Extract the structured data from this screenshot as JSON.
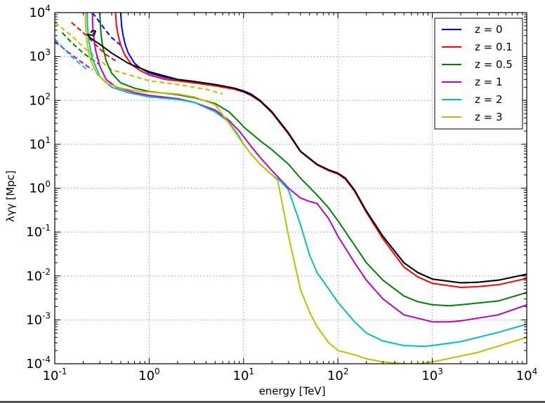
{
  "chart_data": {
    "type": "line",
    "title": "",
    "xlabel": "energy [TeV]",
    "ylabel": "λγγ [Mpc]",
    "xscale": "log",
    "yscale": "log",
    "xlim": [
      0.1,
      10000
    ],
    "ylim": [
      0.0001,
      10000
    ],
    "x_ticks": [
      {
        "value": 0.1,
        "base": "10",
        "exp": "-1"
      },
      {
        "value": 1,
        "base": "10",
        "exp": "0"
      },
      {
        "value": 10,
        "base": "10",
        "exp": "1"
      },
      {
        "value": 100,
        "base": "10",
        "exp": "2"
      },
      {
        "value": 1000,
        "base": "10",
        "exp": "3"
      },
      {
        "value": 10000,
        "base": "10",
        "exp": "4"
      }
    ],
    "y_ticks": [
      {
        "value": 0.0001,
        "base": "10",
        "exp": "-4"
      },
      {
        "value": 0.001,
        "base": "10",
        "exp": "-3"
      },
      {
        "value": 0.01,
        "base": "10",
        "exp": "-2"
      },
      {
        "value": 0.1,
        "base": "10",
        "exp": "-1"
      },
      {
        "value": 1,
        "base": "10",
        "exp": "0"
      },
      {
        "value": 10,
        "base": "10",
        "exp": "1"
      },
      {
        "value": 100,
        "base": "10",
        "exp": "2"
      },
      {
        "value": 1000,
        "base": "10",
        "exp": "3"
      },
      {
        "value": 10000,
        "base": "10",
        "exp": "4"
      }
    ],
    "grid": true,
    "legend_position": "top-right",
    "series": [
      {
        "name": "z = 0",
        "color": "#0000ff",
        "x": [
          0.5,
          0.51,
          0.53,
          0.56,
          0.6,
          0.7,
          0.8,
          1.0,
          1.5,
          2,
          3,
          5,
          8,
          10,
          12,
          15,
          20,
          30,
          40,
          60,
          80,
          100,
          120,
          150,
          200,
          300,
          500,
          700,
          1000,
          2000,
          3000,
          5000,
          10000
        ],
        "y": [
          10000,
          5000,
          3000,
          1800,
          1200,
          700,
          550,
          420,
          330,
          300,
          270,
          230,
          190,
          165,
          140,
          100,
          55,
          18,
          7,
          3.5,
          2.6,
          2.2,
          1.7,
          0.9,
          0.3,
          0.08,
          0.02,
          0.012,
          0.0085,
          0.007,
          0.0072,
          0.008,
          0.011
        ],
        "dashed_x": [
          0.25,
          0.3,
          0.35,
          0.4,
          0.5
        ],
        "dashed_y": [
          10000,
          6000,
          3800,
          2700,
          1800
        ]
      },
      {
        "name": "z = 0.1",
        "color": "#ff0000",
        "x": [
          0.44,
          0.45,
          0.47,
          0.5,
          0.55,
          0.65,
          0.8,
          1.0,
          1.5,
          2,
          3,
          5,
          8,
          10,
          12,
          15,
          20,
          30,
          40,
          60,
          80,
          100,
          120,
          150,
          200,
          300,
          500,
          700,
          1000,
          2000,
          3000,
          5000,
          10000
        ],
        "y": [
          10000,
          5000,
          3000,
          1800,
          1100,
          650,
          480,
          380,
          300,
          280,
          250,
          215,
          180,
          155,
          130,
          95,
          52,
          17,
          6.8,
          3.4,
          2.5,
          2.1,
          1.6,
          0.85,
          0.28,
          0.07,
          0.016,
          0.0095,
          0.0068,
          0.0055,
          0.0057,
          0.0063,
          0.0088
        ],
        "dashed_x": [
          0.15,
          0.2,
          0.25,
          0.3,
          0.35,
          0.44
        ],
        "dashed_y": [
          6000,
          3500,
          2200,
          1500,
          1100,
          800
        ]
      },
      {
        "name": "z = 0.5",
        "color": "#007f00",
        "x": [
          0.3,
          0.305,
          0.31,
          0.32,
          0.35,
          0.4,
          0.5,
          0.7,
          1.0,
          2,
          3,
          5,
          7,
          9,
          10,
          12,
          15,
          20,
          30,
          40,
          60,
          80,
          100,
          150,
          200,
          300,
          500,
          700,
          1000,
          1500,
          2000,
          5000,
          10000
        ],
        "y": [
          10000,
          5000,
          3000,
          1800,
          800,
          420,
          250,
          190,
          160,
          135,
          115,
          85,
          55,
          32,
          25,
          18,
          12,
          7.5,
          3.5,
          1.7,
          0.7,
          0.35,
          0.18,
          0.05,
          0.02,
          0.008,
          0.0035,
          0.0026,
          0.0022,
          0.0021,
          0.0022,
          0.0027,
          0.0042
        ],
        "dashed_x": [
          0.12,
          0.15,
          0.2,
          0.25,
          0.3
        ],
        "dashed_y": [
          3500,
          2100,
          1200,
          850,
          650
        ]
      },
      {
        "name": "z = 1",
        "color": "#bf00bf",
        "x": [
          0.25,
          0.252,
          0.26,
          0.27,
          0.3,
          0.35,
          0.45,
          0.7,
          1.0,
          2,
          3,
          5,
          7,
          9,
          10,
          12,
          15,
          20,
          30,
          40,
          50,
          60,
          80,
          100,
          150,
          200,
          300,
          500,
          1000,
          1500,
          2000,
          5000,
          10000
        ],
        "y": [
          10000,
          5000,
          2500,
          1400,
          600,
          300,
          200,
          150,
          130,
          110,
          90,
          60,
          35,
          20,
          15,
          9,
          5,
          2.5,
          1.0,
          0.6,
          0.5,
          0.45,
          0.2,
          0.08,
          0.02,
          0.008,
          0.003,
          0.0013,
          0.0009,
          0.0009,
          0.00095,
          0.0013,
          0.0022
        ],
        "dashed_x": [
          0.1,
          0.15,
          0.2,
          0.25
        ],
        "dashed_y": [
          2200,
          1100,
          700,
          500
        ]
      },
      {
        "name": "z = 2",
        "color": "#00bfbf",
        "x": [
          0.22,
          0.222,
          0.23,
          0.25,
          0.3,
          0.4,
          0.6,
          1.0,
          2,
          3,
          5,
          7,
          9,
          10,
          12,
          15,
          20,
          25,
          30,
          40,
          50,
          60,
          80,
          100,
          150,
          200,
          300,
          500,
          800,
          1000,
          2000,
          5000,
          10000
        ],
        "y": [
          10000,
          5000,
          2200,
          900,
          350,
          200,
          150,
          120,
          105,
          90,
          55,
          32,
          15,
          10,
          6,
          3.5,
          2.0,
          1.4,
          0.9,
          0.15,
          0.03,
          0.012,
          0.005,
          0.0025,
          0.0009,
          0.0005,
          0.00033,
          0.00026,
          0.00025,
          0.00026,
          0.00032,
          0.00052,
          0.0008
        ],
        "dashed_x": [
          0.1,
          0.15,
          0.22
        ],
        "dashed_y": [
          2500,
          1000,
          500
        ]
      },
      {
        "name": "z = 3",
        "color": "#bfbf00",
        "x": [
          0.21,
          0.212,
          0.22,
          0.24,
          0.28,
          0.35,
          0.5,
          0.8,
          1.0,
          2,
          3,
          5,
          7,
          10,
          12,
          15,
          20,
          23,
          25,
          30,
          40,
          50,
          60,
          80,
          100,
          150,
          200,
          300,
          500,
          700,
          1000,
          3000,
          10000
        ],
        "y": [
          10000,
          5000,
          2000,
          800,
          400,
          250,
          190,
          160,
          155,
          140,
          120,
          80,
          30,
          10,
          6,
          3.5,
          2.0,
          1.5,
          0.6,
          0.08,
          0.005,
          0.0015,
          0.0007,
          0.0003,
          0.0002,
          0.00016,
          0.00013,
          0.00011,
          0.0001,
          0.0001,
          0.00011,
          0.00018,
          0.0004
        ],
        "dashed_x": [
          0.1,
          0.15,
          0.21,
          0.4,
          1.0,
          2.0,
          4.0,
          6.0
        ],
        "dashed_y": [
          6000,
          3000,
          1500,
          500,
          280,
          230,
          180,
          140
        ]
      },
      {
        "name": "black",
        "color": "#000000",
        "legend": false,
        "x": [
          0.24,
          0.25,
          0.27,
          0.26,
          0.22,
          0.24,
          0.3,
          0.4,
          0.6,
          1.0,
          2,
          3,
          5,
          8,
          10,
          12,
          15,
          20,
          30,
          40,
          60,
          80,
          100,
          120,
          150,
          200,
          300,
          500,
          700,
          1000,
          2000,
          3000,
          5000,
          10000
        ],
        "y": [
          3500,
          3900,
          3800,
          3000,
          3200,
          2600,
          1900,
          1200,
          700,
          450,
          300,
          270,
          230,
          190,
          160,
          135,
          98,
          54,
          18,
          7,
          3.5,
          2.6,
          2.2,
          1.7,
          0.9,
          0.3,
          0.08,
          0.02,
          0.012,
          0.0085,
          0.007,
          0.0072,
          0.008,
          0.011
        ]
      }
    ]
  }
}
